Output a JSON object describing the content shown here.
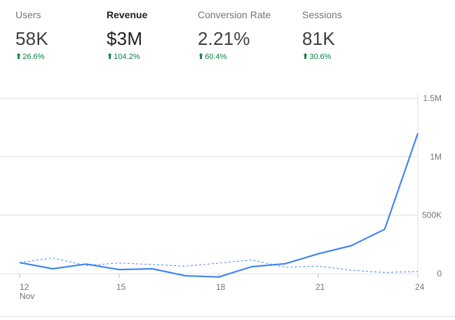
{
  "metrics": [
    {
      "label": "Users",
      "value": "58K",
      "change": "26.6%",
      "active": false
    },
    {
      "label": "Revenue",
      "value": "$3M",
      "change": "104.2%",
      "active": true
    },
    {
      "label": "Conversion Rate",
      "value": "2.21%",
      "change": "60.4%",
      "active": false
    },
    {
      "label": "Sessions",
      "value": "81K",
      "change": "30.6%",
      "active": false
    }
  ],
  "icons": {
    "trend": "arrow-up-icon"
  },
  "colors": {
    "primary": "#4285f4",
    "comparison": "#4285f4",
    "positive": "#0b8043",
    "grid": "#e0e0e0"
  },
  "chart_data": {
    "type": "line",
    "x": [
      12,
      13,
      14,
      15,
      16,
      17,
      18,
      19,
      20,
      21,
      22,
      23,
      24
    ],
    "x_tick_labels": [
      "12",
      "15",
      "18",
      "21",
      "24"
    ],
    "x_tick_values": [
      12,
      15,
      18,
      21,
      24
    ],
    "x_sublabel": "Nov",
    "y_tick_labels": [
      "0",
      "500K",
      "1M",
      "1.5M"
    ],
    "y_tick_values": [
      0,
      500000,
      1000000,
      1500000
    ],
    "ylim": [
      0,
      1500000
    ],
    "grid": true,
    "series": [
      {
        "style": "solid",
        "color": "#4285f4",
        "values": [
          95000,
          42000,
          82000,
          35000,
          42000,
          -18000,
          -28000,
          60000,
          85000,
          170000,
          240000,
          380000,
          1200000
        ]
      },
      {
        "style": "dashed",
        "color": "#4285f4",
        "values": [
          95000,
          135000,
          70000,
          92000,
          78000,
          65000,
          90000,
          118000,
          55000,
          65000,
          30000,
          10000,
          20000
        ]
      }
    ]
  }
}
